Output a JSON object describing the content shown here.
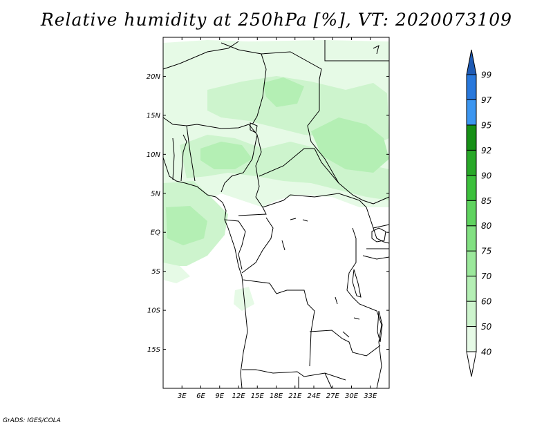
{
  "title": "Relative humidity at 250hPa [%], VT: 2020073109",
  "credit": "GrADS: IGES/COLA",
  "map": {
    "lon_range": [
      0,
      36
    ],
    "lat_range": [
      -20,
      25
    ],
    "lon_ticks": [
      "3E",
      "6E",
      "9E",
      "12E",
      "15E",
      "18E",
      "21E",
      "24E",
      "27E",
      "30E",
      "33E"
    ],
    "lat_ticks": [
      "20N",
      "15N",
      "10N",
      "5N",
      "EQ",
      "5S",
      "10S",
      "15S"
    ]
  },
  "colorbar": {
    "levels": [
      "40",
      "50",
      "60",
      "70",
      "75",
      "80",
      "85",
      "90",
      "92",
      "95",
      "97",
      "99"
    ],
    "colors": [
      "#e6fae6",
      "#cdf4cd",
      "#b4efb4",
      "#9be89b",
      "#82e082",
      "#5fd35f",
      "#3cc03c",
      "#28a828",
      "#169016",
      "#3c96f0",
      "#2878dc",
      "#1e5ab4"
    ]
  }
}
